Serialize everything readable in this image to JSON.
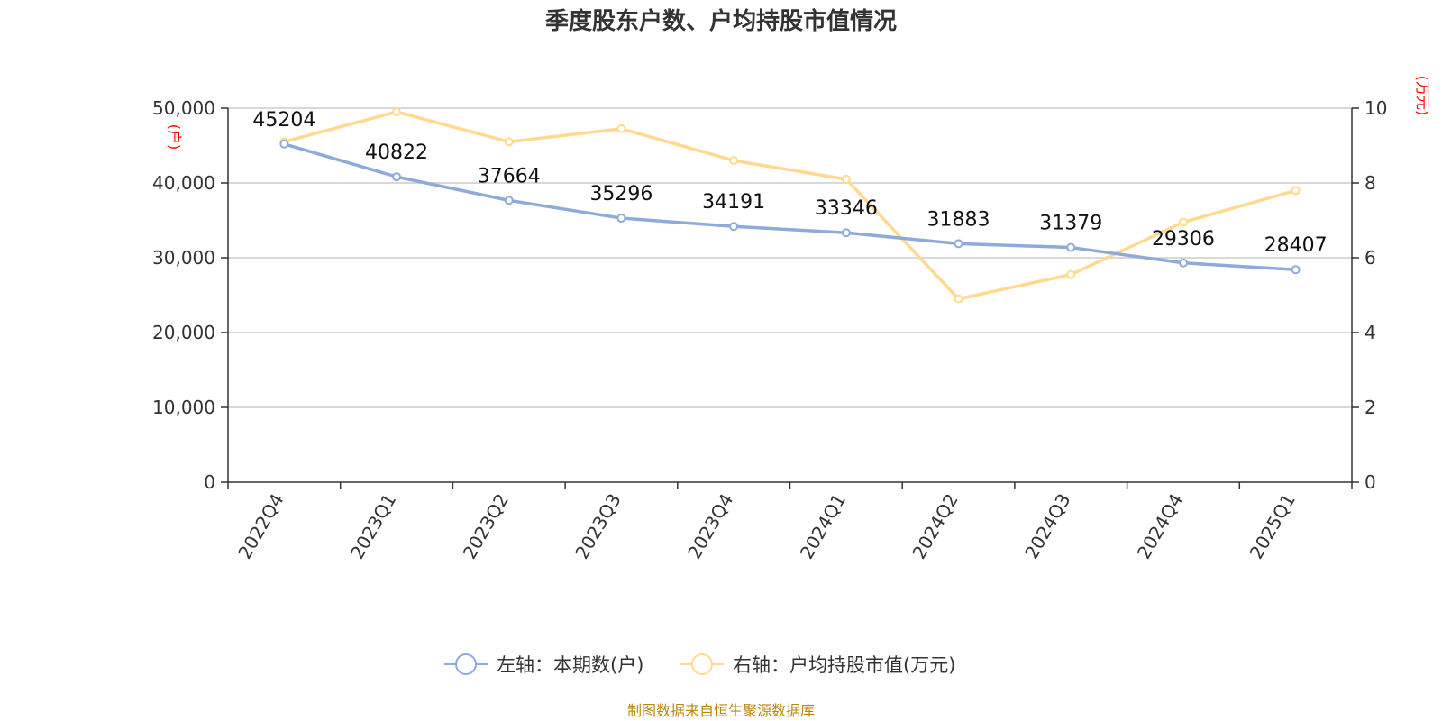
{
  "chart_data": {
    "type": "line",
    "title": "季度股东户数、户均持股市值情况",
    "categories": [
      "2022Q4",
      "2023Q1",
      "2023Q2",
      "2023Q3",
      "2023Q4",
      "2024Q1",
      "2024Q2",
      "2024Q3",
      "2024Q4",
      "2025Q1"
    ],
    "series": [
      {
        "name": "左轴：本期数(户)",
        "axis": "left",
        "color": "#8eaadb",
        "values": [
          45204,
          40822,
          37664,
          35296,
          34191,
          33346,
          31883,
          31379,
          29306,
          28407
        ],
        "labels": [
          "45204",
          "40822",
          "37664",
          "35296",
          "34191",
          "33346",
          "31883",
          "31379",
          "29306",
          "28407"
        ]
      },
      {
        "name": "右轴：户均持股市值(万元)",
        "axis": "right",
        "color": "#ffd98f",
        "values": [
          9.1,
          9.9,
          9.1,
          9.45,
          8.6,
          8.1,
          4.9,
          5.55,
          6.95,
          7.8
        ]
      }
    ],
    "left_axis": {
      "unit": "(户)",
      "min": 0,
      "max": 50000,
      "ticks": [
        "0",
        "10,000",
        "20,000",
        "30,000",
        "40,000",
        "50,000"
      ],
      "tick_values": [
        0,
        10000,
        20000,
        30000,
        40000,
        50000
      ]
    },
    "right_axis": {
      "unit": "(万元)",
      "min": 0,
      "max": 10,
      "ticks": [
        "0",
        "2",
        "4",
        "6",
        "8",
        "10"
      ],
      "tick_values": [
        0,
        2,
        4,
        6,
        8,
        10
      ]
    },
    "grid": true,
    "legend_position": "bottom"
  },
  "source": "制图数据来自恒生聚源数据库"
}
